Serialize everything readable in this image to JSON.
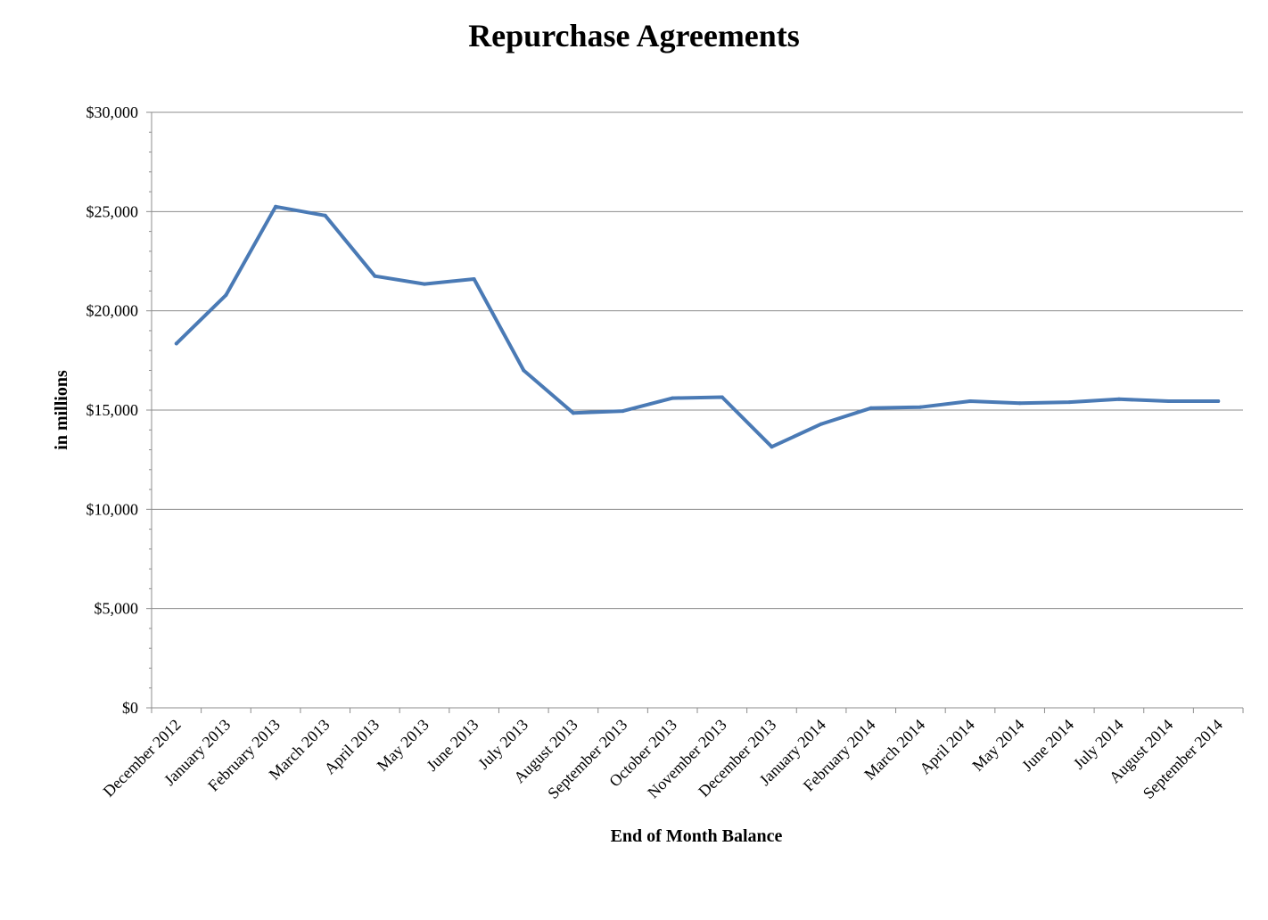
{
  "chart_data": {
    "type": "line",
    "title": "Repurchase Agreements",
    "xlabel": "End of Month Balance",
    "ylabel": "in millions",
    "categories": [
      "December 2012",
      "January 2013",
      "February 2013",
      "March 2013",
      "April 2013",
      "May 2013",
      "June 2013",
      "July 2013",
      "August 2013",
      "September 2013",
      "October 2013",
      "November 2013",
      "December 2013",
      "January 2014",
      "February 2014",
      "March 2014",
      "April 2014",
      "May 2014",
      "June 2014",
      "July 2014",
      "August 2014",
      "September 2014"
    ],
    "series": [
      {
        "values": [
          18350,
          20800,
          25250,
          24800,
          21750,
          21350,
          21600,
          17000,
          14850,
          14950,
          15600,
          15650,
          13150,
          14300,
          15100,
          15150,
          15450,
          15350,
          15400,
          15550,
          15450,
          15450
        ],
        "color": "#4a7ab5"
      }
    ],
    "ylim": [
      0,
      30000
    ],
    "yticks": [
      0,
      5000,
      10000,
      15000,
      20000,
      25000,
      30000
    ],
    "ytick_labels": [
      "$0",
      "$5,000",
      "$10,000",
      "$15,000",
      "$20,000",
      "$25,000",
      "$30,000"
    ],
    "grid": true,
    "legend": "none"
  }
}
